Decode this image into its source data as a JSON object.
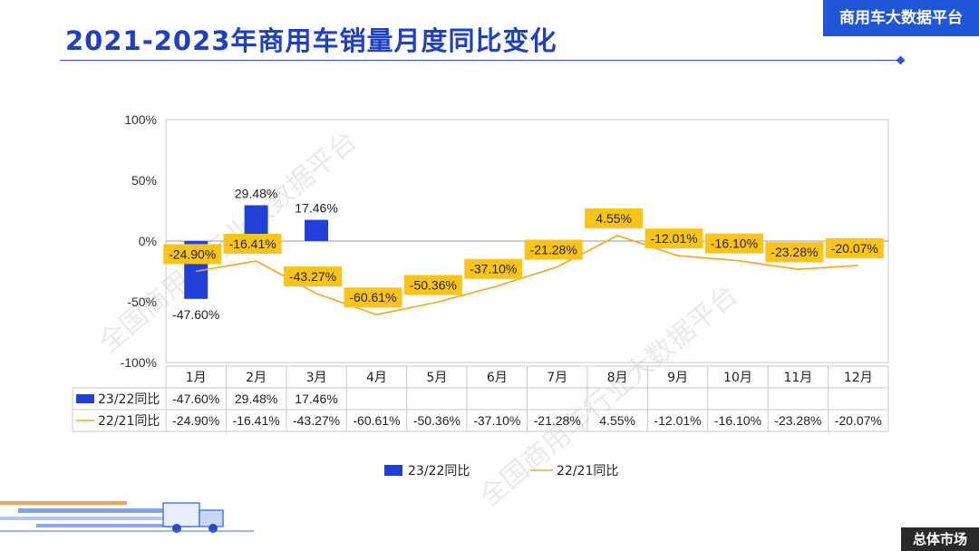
{
  "header": {
    "title": "2021-2023年商用车销量月度同比变化",
    "brand": "商用车大数据平台"
  },
  "footer": {
    "tag": "总体市场"
  },
  "watermark": "全国商用车行业大数据平台",
  "chart_data": {
    "type": "bar",
    "categories": [
      "1月",
      "2月",
      "3月",
      "4月",
      "5月",
      "6月",
      "7月",
      "8月",
      "9月",
      "10月",
      "11月",
      "12月"
    ],
    "ylim": [
      -100,
      100
    ],
    "yticks": [
      100,
      50,
      0,
      -50,
      -100
    ],
    "ytick_labels": [
      "100%",
      "50%",
      "0%",
      "-50%",
      "-100%"
    ],
    "grid": false,
    "legend": "bottom",
    "series": [
      {
        "name": "23/22同比",
        "kind": "bar",
        "color": "#2040d8",
        "values": [
          -47.6,
          29.48,
          17.46,
          null,
          null,
          null,
          null,
          null,
          null,
          null,
          null,
          null
        ],
        "labels": [
          "-47.60%",
          "29.48%",
          "17.46%",
          "",
          "",
          "",
          "",
          "",
          "",
          "",
          "",
          ""
        ]
      },
      {
        "name": "22/21同比",
        "kind": "line",
        "color": "#f5a623",
        "values": [
          -24.9,
          -16.41,
          -43.27,
          -60.61,
          -50.36,
          -37.1,
          -21.28,
          4.55,
          -12.01,
          -16.1,
          -23.28,
          -20.07
        ],
        "labels": [
          "-24.90%",
          "-16.41%",
          "-43.27%",
          "-60.61%",
          "-50.36%",
          "-37.10%",
          "-21.28%",
          "4.55%",
          "-12.01%",
          "-16.10%",
          "-23.28%",
          "-20.07%"
        ]
      }
    ]
  }
}
